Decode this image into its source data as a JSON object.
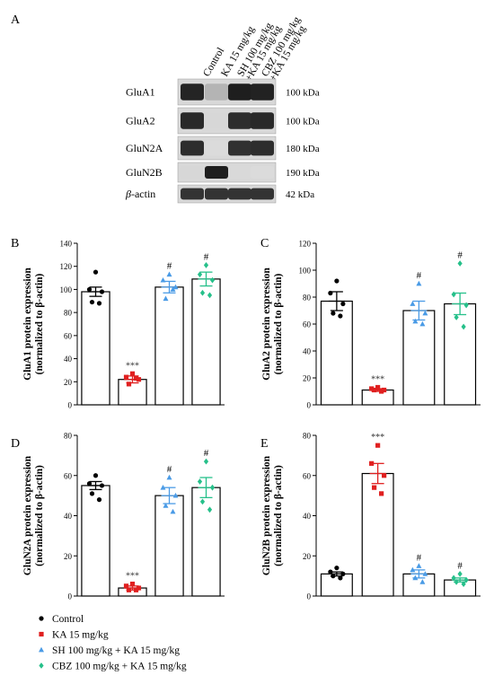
{
  "figure": {
    "panel_a_letter": "A",
    "blot": {
      "lanes": [
        "Control",
        "KA 15 mg/kg",
        "SH 100 mg/kg\n+KA 15 mg/kg",
        "CBZ 100 mg/kg\n+KA 15 mg/kg"
      ],
      "rows": [
        {
          "label": "GluA1",
          "italic_prefix": "",
          "kda": "100 kDa",
          "intensity": [
            0.92,
            0.22,
            0.95,
            0.93
          ]
        },
        {
          "label": "GluA2",
          "italic_prefix": "",
          "kda": "100 kDa",
          "intensity": [
            0.9,
            0.05,
            0.88,
            0.9
          ]
        },
        {
          "label": "GluN2A",
          "italic_prefix": "",
          "kda": "180 kDa",
          "intensity": [
            0.88,
            0.03,
            0.86,
            0.88
          ]
        },
        {
          "label": "GluN2B",
          "italic_prefix": "",
          "kda": "190 kDa",
          "intensity": [
            0.05,
            0.95,
            0.04,
            0.03
          ]
        },
        {
          "label": "-actin",
          "italic_prefix": "β",
          "kda": "42 kDa",
          "intensity": [
            0.85,
            0.85,
            0.85,
            0.85
          ]
        }
      ]
    },
    "legend": [
      {
        "label": "Control",
        "marker": "circle",
        "color": "#000000"
      },
      {
        "label": "KA 15 mg/kg",
        "marker": "square",
        "color": "#e02020"
      },
      {
        "label": "SH 100 mg/kg + KA 15 mg/kg",
        "marker": "triangle",
        "color": "#4a9be6"
      },
      {
        "label": "CBZ 100 mg/kg + KA 15 mg/kg",
        "marker": "diamond",
        "color": "#26c08a"
      }
    ]
  },
  "chart_data": [
    {
      "panel": "B",
      "type": "bar",
      "ylabel_line1": "GluA1 protein expression",
      "ylabel_line2": "(normalized to β-actin)",
      "ylim": [
        0,
        140
      ],
      "yticks": [
        0,
        20,
        40,
        60,
        80,
        100,
        120,
        140
      ],
      "categories": [
        "Control",
        "KA 15 mg/kg",
        "SH 100 mg/kg + KA 15 mg/kg",
        "CBZ 100 mg/kg + KA 15 mg/kg"
      ],
      "values": [
        98,
        22,
        102,
        109
      ],
      "sem": [
        4,
        3,
        5,
        6
      ],
      "points": [
        [
          115,
          100,
          98,
          89,
          88
        ],
        [
          27,
          24,
          22,
          18,
          23
        ],
        [
          113,
          108,
          102,
          92,
          100
        ],
        [
          121,
          113,
          108,
          97,
          95
        ]
      ],
      "annotations": [
        "",
        "***",
        "#",
        "#"
      ]
    },
    {
      "panel": "C",
      "type": "bar",
      "ylabel_line1": "GluA2 protein expression",
      "ylabel_line2": "(normalized to β-actin)",
      "ylim": [
        0,
        120
      ],
      "yticks": [
        0,
        20,
        40,
        60,
        80,
        100,
        120
      ],
      "categories": [
        "Control",
        "KA 15 mg/kg",
        "SH 100 mg/kg + KA 15 mg/kg",
        "CBZ 100 mg/kg + KA 15 mg/kg"
      ],
      "values": [
        77,
        11,
        70,
        75
      ],
      "sem": [
        7,
        1,
        7,
        8
      ],
      "points": [
        [
          92,
          83,
          75,
          68,
          66
        ],
        [
          13,
          12,
          11,
          11,
          10
        ],
        [
          90,
          75,
          68,
          62,
          60
        ],
        [
          105,
          82,
          74,
          65,
          58
        ]
      ],
      "annotations": [
        "",
        "***",
        "#",
        "#"
      ]
    },
    {
      "panel": "D",
      "type": "bar",
      "ylabel_line1": "GluN2A protein expression",
      "ylabel_line2": "(normalized to β-actin)",
      "ylim": [
        0,
        80
      ],
      "yticks": [
        0,
        20,
        40,
        60,
        80
      ],
      "categories": [
        "Control",
        "KA 15 mg/kg",
        "SH 100 mg/kg + KA 15 mg/kg",
        "CBZ 100 mg/kg + KA 15 mg/kg"
      ],
      "values": [
        55,
        4,
        50,
        54
      ],
      "sem": [
        2,
        1,
        4,
        5
      ],
      "points": [
        [
          60,
          56,
          55,
          51,
          48
        ],
        [
          6,
          5,
          4,
          3,
          3
        ],
        [
          59,
          54,
          50,
          45,
          42
        ],
        [
          67,
          57,
          54,
          47,
          43
        ]
      ],
      "annotations": [
        "",
        "***",
        "#",
        "#"
      ]
    },
    {
      "panel": "E",
      "type": "bar",
      "ylabel_line1": "GluN2B protein expression",
      "ylabel_line2": "(normalized to β-actin)",
      "ylim": [
        0,
        80
      ],
      "yticks": [
        0,
        20,
        40,
        60,
        80
      ],
      "categories": [
        "Control",
        "KA 15 mg/kg",
        "SH 100 mg/kg + KA 15 mg/kg",
        "CBZ 100 mg/kg + KA 15 mg/kg"
      ],
      "values": [
        11,
        61,
        11,
        8
      ],
      "sem": [
        1,
        5,
        2,
        1
      ],
      "points": [
        [
          14,
          12,
          11,
          10,
          9
        ],
        [
          75,
          66,
          60,
          54,
          51
        ],
        [
          15,
          13,
          11,
          9,
          7
        ],
        [
          11,
          9,
          8,
          7,
          6
        ]
      ],
      "annotations": [
        "",
        "***",
        "#",
        "#"
      ]
    }
  ]
}
